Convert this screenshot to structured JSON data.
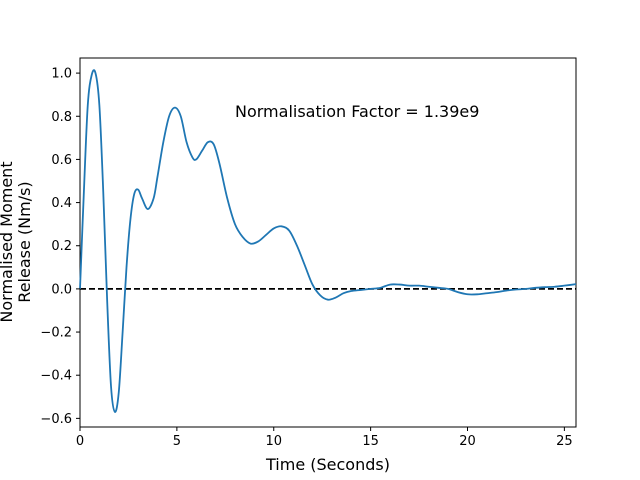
{
  "chart_data": {
    "type": "line",
    "title": "",
    "xlabel": "Time (Seconds)",
    "ylabel_lines": [
      "Normalised Moment",
      "Release (Nm/s)"
    ],
    "xlim": [
      0,
      25.6
    ],
    "ylim": [
      -0.64,
      1.07
    ],
    "xticks": [
      0,
      5,
      10,
      15,
      20,
      25
    ],
    "yticks": [
      -0.6,
      -0.4,
      -0.2,
      0.0,
      0.2,
      0.4,
      0.6,
      0.8,
      1.0
    ],
    "xtick_labels": [
      "0",
      "5",
      "10",
      "15",
      "20",
      "25"
    ],
    "ytick_labels": [
      "−0.6",
      "−0.4",
      "−0.2",
      "0.0",
      "0.2",
      "0.4",
      "0.6",
      "0.8",
      "1.0"
    ],
    "annotation": "Normalisation Factor = 1.39e9",
    "grid": false,
    "series": [
      {
        "color": "#1f77b4",
        "x": [
          0,
          0.2,
          0.4,
          0.6,
          0.8,
          1.0,
          1.2,
          1.4,
          1.6,
          1.8,
          2.0,
          2.2,
          2.4,
          2.6,
          2.8,
          3.0,
          3.2,
          3.5,
          3.8,
          4.0,
          4.3,
          4.6,
          4.9,
          5.2,
          5.5,
          5.8,
          6.0,
          6.3,
          6.6,
          6.9,
          7.2,
          7.6,
          8.0,
          8.4,
          8.8,
          9.2,
          9.6,
          10.0,
          10.4,
          10.8,
          11.2,
          11.6,
          12.0,
          12.4,
          12.8,
          13.2,
          13.6,
          14.0,
          14.5,
          15.0,
          15.5,
          16.0,
          16.5,
          17.0,
          17.5,
          18.0,
          18.5,
          19.0,
          19.5,
          20.0,
          20.5,
          21.0,
          21.5,
          22.0,
          22.5,
          23.0,
          23.5,
          24.0,
          24.5,
          25.0,
          25.6
        ],
        "y": [
          0.0,
          0.45,
          0.85,
          0.99,
          1.0,
          0.85,
          0.45,
          -0.05,
          -0.45,
          -0.57,
          -0.48,
          -0.2,
          0.1,
          0.32,
          0.44,
          0.46,
          0.42,
          0.37,
          0.42,
          0.52,
          0.68,
          0.8,
          0.84,
          0.8,
          0.68,
          0.61,
          0.6,
          0.64,
          0.68,
          0.67,
          0.58,
          0.42,
          0.3,
          0.24,
          0.21,
          0.22,
          0.25,
          0.28,
          0.29,
          0.27,
          0.2,
          0.11,
          0.02,
          -0.03,
          -0.05,
          -0.04,
          -0.02,
          -0.01,
          -0.005,
          0.0,
          0.005,
          0.02,
          0.02,
          0.015,
          0.015,
          0.01,
          0.005,
          0.0,
          -0.015,
          -0.025,
          -0.025,
          -0.02,
          -0.015,
          -0.008,
          -0.003,
          0.0,
          0.005,
          0.008,
          0.01,
          0.015,
          0.022
        ]
      }
    ],
    "reference_line": {
      "y": 0.0,
      "style": "dashed",
      "color": "#000000"
    }
  }
}
